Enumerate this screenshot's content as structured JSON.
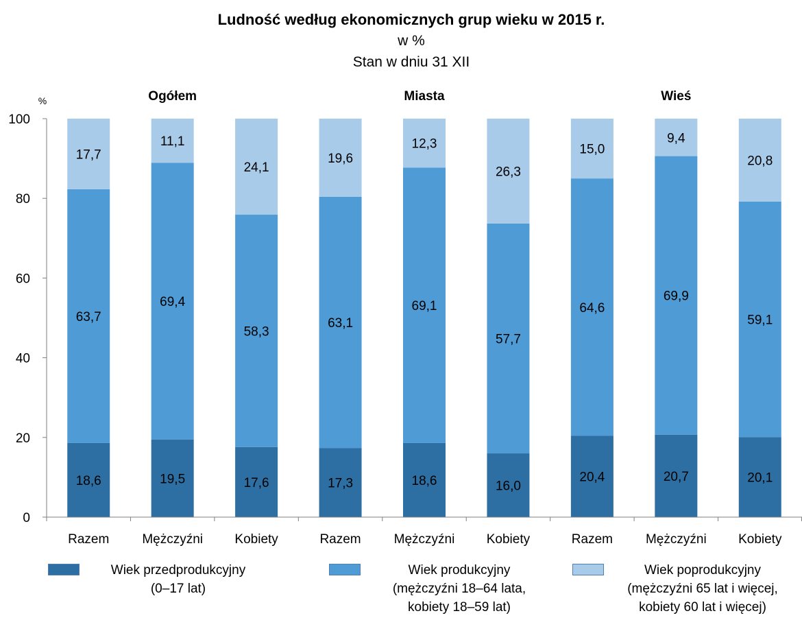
{
  "title": "Ludność według ekonomicznych grup wieku w 2015 r.",
  "subtitle_unit": "w %",
  "subtitle_date": "Stan w dniu 31 XII",
  "colors": {
    "przedprodukcyjny": "#2e6fa3",
    "produkcyjny": "#4f9bd5",
    "poprodukcyjny": "#a7cbe8",
    "axis": "#7f7f7f"
  },
  "chart_data": {
    "type": "bar",
    "stacked": true,
    "ylabel": "%",
    "ylim": [
      0,
      100
    ],
    "yticks": [
      0,
      20,
      40,
      60,
      80,
      100
    ],
    "groups": [
      "Ogółem",
      "Miasta",
      "Wieś"
    ],
    "categories": [
      "Razem",
      "Mężczyźni",
      "Kobiety",
      "Razem",
      "Mężczyźni",
      "Kobiety",
      "Razem",
      "Mężczyźni",
      "Kobiety"
    ],
    "series": [
      {
        "key": "przedprodukcyjny",
        "values": [
          18.6,
          19.5,
          17.6,
          17.3,
          18.6,
          16.0,
          20.4,
          20.7,
          20.1
        ],
        "labels": [
          "18,6",
          "19,5",
          "17,6",
          "17,3",
          "18,6",
          "16,0",
          "20,4",
          "20,7",
          "20,1"
        ]
      },
      {
        "key": "produkcyjny",
        "values": [
          63.7,
          69.4,
          58.3,
          63.1,
          69.1,
          57.7,
          64.6,
          69.9,
          59.1
        ],
        "labels": [
          "63,7",
          "69,4",
          "58,3",
          "63,1",
          "69,1",
          "57,7",
          "64,6",
          "69,9",
          "59,1"
        ]
      },
      {
        "key": "poprodukcyjny",
        "values": [
          17.7,
          11.1,
          24.1,
          19.6,
          12.3,
          26.3,
          15.0,
          9.4,
          20.8
        ],
        "labels": [
          "17,7",
          "11,1",
          "24,1",
          "19,6",
          "12,3",
          "26,3",
          "15,0",
          "9,4",
          "20,8"
        ]
      }
    ],
    "legend": {
      "przedprodukcyjny": [
        "Wiek przedprodukcyjny",
        "(0–17 lat)"
      ],
      "produkcyjny": [
        "Wiek produkcyjny",
        "(mężczyźni 18–64 lata,",
        "kobiety 18–59 lat)"
      ],
      "poprodukcyjny": [
        "Wiek poprodukcyjny",
        "(mężczyźni 65 lat i więcej,",
        "kobiety 60 lat i więcej)"
      ]
    },
    "legend_position": "bottom"
  }
}
